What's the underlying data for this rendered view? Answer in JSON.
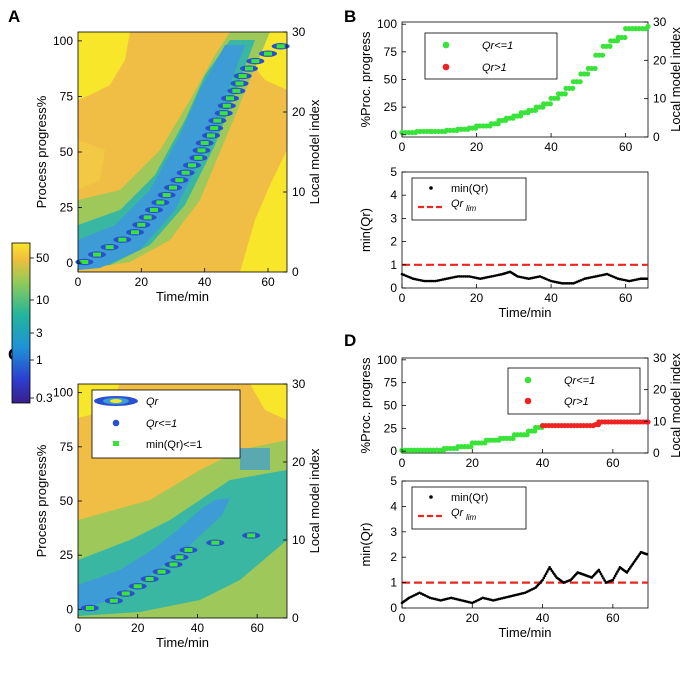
{
  "panels": {
    "A": "A",
    "B": "B",
    "C": "C",
    "D": "D"
  },
  "colors": {
    "bg_far": "#f8e62a",
    "bg_mid": "#f0bd45",
    "bg_near": "#9ec95a",
    "blue_near": "#3d9bd6",
    "blue_core": "#2a4fd1",
    "green": "#39e339",
    "red": "#ef2323",
    "black": "#000000",
    "lim_red": "#e6281e"
  },
  "chart_data": [
    {
      "id": "A",
      "type": "heatmap",
      "title": "",
      "xlabel": "Time/min",
      "ylabel": "Process progress%",
      "y2label": "Local model index",
      "xlim": [
        0,
        66
      ],
      "ylim": [
        -4,
        104
      ],
      "y2lim": [
        0,
        30
      ],
      "xticks": [
        "0",
        "20",
        "40",
        "60"
      ],
      "yticks": [
        "0",
        "25",
        "50",
        "75",
        "100"
      ],
      "y2ticks": [
        "0",
        "10",
        "20",
        "30"
      ],
      "trajectory": [
        [
          0,
          2
        ],
        [
          5,
          4
        ],
        [
          10,
          7
        ],
        [
          15,
          10
        ],
        [
          20,
          16
        ],
        [
          25,
          22
        ],
        [
          30,
          30
        ],
        [
          35,
          38
        ],
        [
          40,
          48
        ],
        [
          45,
          58
        ],
        [
          48,
          66
        ],
        [
          50,
          74
        ],
        [
          52,
          82
        ],
        [
          54,
          88
        ],
        [
          56,
          93
        ],
        [
          60,
          97
        ],
        [
          65,
          99
        ]
      ],
      "min_qr_points": [
        [
          2,
          0
        ],
        [
          6,
          1
        ],
        [
          10,
          2
        ],
        [
          14,
          3
        ],
        [
          18,
          4
        ],
        [
          20,
          5
        ],
        [
          22,
          6
        ],
        [
          24,
          7
        ],
        [
          26,
          8
        ],
        [
          28,
          9
        ],
        [
          30,
          10
        ],
        [
          32,
          11
        ],
        [
          34,
          12
        ],
        [
          36,
          13
        ],
        [
          38,
          14
        ],
        [
          39,
          15
        ],
        [
          40,
          16
        ],
        [
          42,
          17
        ],
        [
          43,
          18
        ],
        [
          44,
          19
        ],
        [
          46,
          20
        ],
        [
          47,
          21
        ],
        [
          48,
          22
        ],
        [
          50,
          23
        ],
        [
          51,
          24
        ],
        [
          52,
          25
        ],
        [
          54,
          26
        ],
        [
          56,
          27
        ],
        [
          60,
          28
        ],
        [
          64,
          29
        ]
      ]
    },
    {
      "id": "B_top",
      "type": "scatter",
      "ylabel": "%Proc. progress",
      "y2label": "Local model index",
      "xlim": [
        0,
        66
      ],
      "ylim": [
        -2,
        102
      ],
      "y2lim": [
        0,
        30
      ],
      "xticks": [
        "0",
        "20",
        "40",
        "60"
      ],
      "yticks": [
        "0",
        "25",
        "50",
        "75",
        "100"
      ],
      "y2ticks": [
        "0",
        "10",
        "20",
        "30"
      ],
      "legend": [
        "Qr<=1",
        "Qr>1"
      ],
      "series": [
        {
          "name": "Qr<=1",
          "steps": [
            [
              0,
              2
            ],
            [
              4,
              3
            ],
            [
              8,
              3
            ],
            [
              12,
              4
            ],
            [
              15,
              5
            ],
            [
              18,
              6
            ],
            [
              20,
              8
            ],
            [
              24,
              10
            ],
            [
              26,
              13
            ],
            [
              28,
              15
            ],
            [
              30,
              17
            ],
            [
              32,
              20
            ],
            [
              34,
              22
            ],
            [
              36,
              25
            ],
            [
              38,
              28
            ],
            [
              40,
              33
            ],
            [
              42,
              37
            ],
            [
              44,
              42
            ],
            [
              46,
              48
            ],
            [
              48,
              55
            ],
            [
              50,
              60
            ],
            [
              52,
              72
            ],
            [
              54,
              80
            ],
            [
              56,
              85
            ],
            [
              58,
              88
            ],
            [
              60,
              96
            ],
            [
              66,
              98
            ]
          ]
        },
        {
          "name": "Qr>1",
          "steps": []
        }
      ]
    },
    {
      "id": "B_bottom",
      "type": "line",
      "xlabel": "Time/min",
      "ylabel": "min(Qr)",
      "xlim": [
        0,
        66
      ],
      "ylim": [
        0,
        5
      ],
      "xticks": [
        "0",
        "20",
        "40",
        "60"
      ],
      "yticks": [
        "0",
        "1",
        "2",
        "3",
        "4",
        "5"
      ],
      "legend": [
        "min(Qr)",
        "Qr_lim"
      ],
      "lim": 1,
      "series": [
        {
          "name": "min(Qr)",
          "x": [
            0,
            3,
            6,
            9,
            12,
            15,
            18,
            21,
            24,
            27,
            29,
            31,
            34,
            37,
            40,
            43,
            46,
            49,
            52,
            55,
            58,
            61,
            64,
            66
          ],
          "y": [
            0.6,
            0.4,
            0.3,
            0.3,
            0.4,
            0.5,
            0.5,
            0.4,
            0.5,
            0.6,
            0.7,
            0.5,
            0.4,
            0.5,
            0.3,
            0.2,
            0.2,
            0.4,
            0.5,
            0.6,
            0.4,
            0.3,
            0.4,
            0.4
          ]
        }
      ]
    },
    {
      "id": "C",
      "type": "heatmap",
      "title": "",
      "xlabel": "Time/min",
      "ylabel": "Process progress%",
      "y2label": "Local model index",
      "xlim": [
        0,
        70
      ],
      "ylim": [
        -4,
        104
      ],
      "y2lim": [
        0,
        30
      ],
      "xticks": [
        "0",
        "20",
        "40",
        "60"
      ],
      "yticks": [
        "0",
        "25",
        "50",
        "75",
        "100"
      ],
      "y2ticks": [
        "0",
        "10",
        "20",
        "30"
      ],
      "legend": [
        "Qr",
        "Qr<=1",
        "min(Qr)<=1"
      ],
      "trajectory": [
        [
          0,
          1
        ],
        [
          8,
          2
        ],
        [
          14,
          5
        ],
        [
          18,
          8
        ],
        [
          22,
          12
        ],
        [
          26,
          17
        ],
        [
          30,
          21
        ],
        [
          34,
          25
        ],
        [
          38,
          28
        ],
        [
          42,
          30
        ],
        [
          55,
          32
        ],
        [
          62,
          33
        ]
      ],
      "min_qr_points": [
        [
          4,
          0
        ],
        [
          12,
          1
        ],
        [
          16,
          2
        ],
        [
          20,
          3
        ],
        [
          24,
          4
        ],
        [
          28,
          5
        ],
        [
          32,
          6
        ],
        [
          34,
          7
        ],
        [
          37,
          8
        ],
        [
          46,
          9
        ],
        [
          58,
          10
        ]
      ]
    },
    {
      "id": "D_top",
      "type": "scatter",
      "ylabel": "%Proc. progress",
      "y2label": "Local model index",
      "xlim": [
        0,
        70
      ],
      "ylim": [
        -2,
        102
      ],
      "y2lim": [
        0,
        30
      ],
      "xticks": [
        "0",
        "20",
        "40",
        "60"
      ],
      "yticks": [
        "0",
        "25",
        "50",
        "75",
        "100"
      ],
      "y2ticks": [
        "0",
        "10",
        "20",
        "30"
      ],
      "legend": [
        "Qr<=1",
        "Qr>1"
      ],
      "series": [
        {
          "name": "Qr<=1",
          "steps": [
            [
              0,
              1
            ],
            [
              10,
              1
            ],
            [
              12,
              3
            ],
            [
              16,
              5
            ],
            [
              20,
              9
            ],
            [
              24,
              12
            ],
            [
              28,
              14
            ],
            [
              32,
              18
            ],
            [
              36,
              22
            ],
            [
              38,
              26
            ],
            [
              40,
              28
            ],
            [
              55,
              32
            ],
            [
              56,
              33
            ]
          ]
        },
        {
          "name": "Qr>1",
          "steps": [
            [
              40,
              28
            ],
            [
              55,
              29
            ],
            [
              56,
              32
            ],
            [
              70,
              32
            ]
          ]
        }
      ]
    },
    {
      "id": "D_bottom",
      "type": "line",
      "xlabel": "Time/min",
      "ylabel": "min(Qr)",
      "xlim": [
        0,
        70
      ],
      "ylim": [
        0,
        5
      ],
      "xticks": [
        "0",
        "20",
        "40",
        "60"
      ],
      "yticks": [
        "0",
        "1",
        "2",
        "3",
        "4",
        "5"
      ],
      "legend": [
        "min(Qr)",
        "Qr_lim"
      ],
      "lim": 1,
      "series": [
        {
          "name": "min(Qr)",
          "x": [
            0,
            2,
            5,
            8,
            11,
            14,
            17,
            20,
            23,
            26,
            29,
            32,
            35,
            38,
            40,
            42,
            44,
            46,
            48,
            50,
            52,
            54,
            56,
            58,
            60,
            62,
            64,
            66,
            68,
            70
          ],
          "y": [
            0.2,
            0.4,
            0.6,
            0.4,
            0.3,
            0.4,
            0.3,
            0.2,
            0.4,
            0.3,
            0.4,
            0.5,
            0.6,
            0.8,
            1.1,
            1.6,
            1.2,
            1.0,
            1.1,
            1.4,
            1.3,
            1.2,
            1.5,
            1.0,
            1.1,
            1.6,
            1.4,
            1.8,
            2.2,
            2.1
          ]
        }
      ]
    },
    {
      "id": "colorbar",
      "type": "heatmap-colorbar",
      "ticks": [
        "50",
        "10",
        "3",
        "1",
        "0.3"
      ]
    }
  ],
  "legend_labels": {
    "qr_le1": "Qr<=1",
    "qr_gt1": "Qr>1",
    "min_qr": "min(Qr)",
    "qr_lim": "Qr",
    "qr_lim_sub": "lim",
    "c_qr": "Qr",
    "c_qr_le1": "Qr<=1",
    "c_minqr_le1": "min(Qr)<=1"
  }
}
